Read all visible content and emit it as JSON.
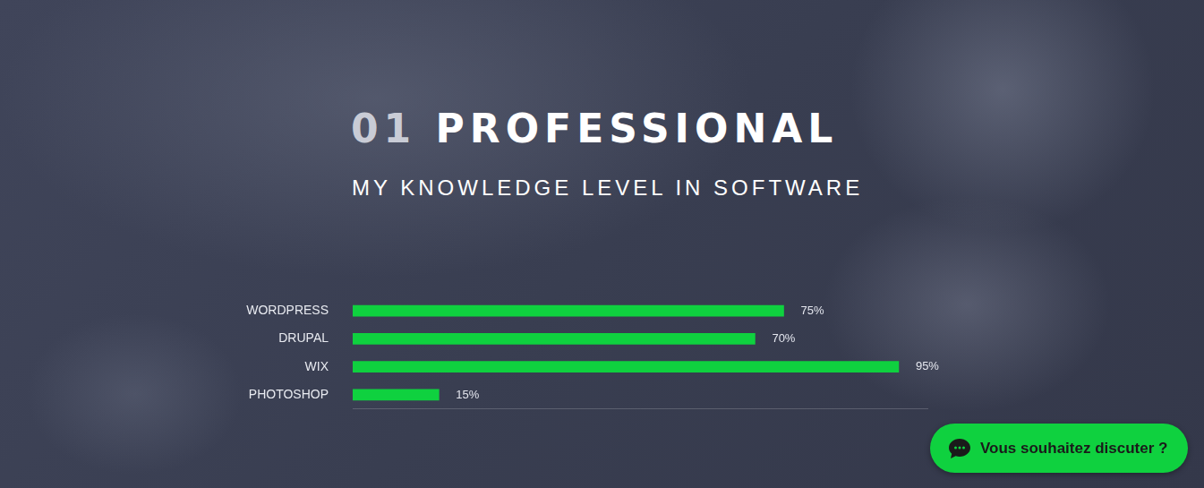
{
  "chart_data": {
    "type": "bar",
    "orientation": "horizontal",
    "title": "01 PROFESSIONAL",
    "subtitle": "MY KNOWLEDGE LEVEL IN SOFTWARE",
    "categories": [
      "WORDPRESS",
      "DRUPAL",
      "WIX",
      "PHOTOSHOP"
    ],
    "values": [
      75,
      70,
      95,
      15
    ],
    "value_labels": [
      "75%",
      "70%",
      "95%",
      "15%"
    ],
    "color": "#0fd13f",
    "xlim": [
      0,
      100
    ],
    "grid": false,
    "data_labels": true,
    "tick_labels": "y"
  },
  "chat_button": {
    "label": "Vous souhaitez discuter ?"
  }
}
